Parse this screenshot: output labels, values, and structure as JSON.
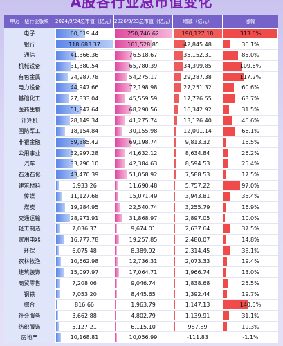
{
  "header": {
    "title": "A股各行业总市值变化"
  },
  "table": {
    "columns": [
      "申万一级行业板块",
      "2024/9/24总市值（亿元）",
      "2026/9/23总市值（亿元）",
      "增减（亿元）",
      "涨幅"
    ],
    "rows": [
      [
        "电子",
        "60,619.44",
        "250,746.62",
        "190,127.18",
        "313.6%"
      ],
      [
        "银行",
        "118,683.37",
        "161,528.85",
        "42,845.48",
        "36.1%"
      ],
      [
        "通信",
        "41,366.36",
        "76,518.67",
        "35,152.31",
        "85.0%"
      ],
      [
        "机械设备",
        "31,380.54",
        "65,780.39",
        "34,399.85",
        "109.6%"
      ],
      [
        "有色金属",
        "24,987.78",
        "54,275.17",
        "29,287.38",
        "117.2%"
      ],
      [
        "电力设备",
        "44,947.66",
        "72,198.98",
        "27,251.32",
        "60.6%"
      ],
      [
        "基础化工",
        "27,833.04",
        "45,559.59",
        "17,726.55",
        "63.7%"
      ],
      [
        "医药生物",
        "51,947.64",
        "68,290.56",
        "16,342.92",
        "31.5%"
      ],
      [
        "计算机",
        "28,149.34",
        "41,275.74",
        "13,126.40",
        "46.6%"
      ],
      [
        "国防军工",
        "18,154.84",
        "30,155.98",
        "12,001.14",
        "66.1%"
      ],
      [
        "非银金融",
        "59,385.42",
        "69,198.74",
        "9,813.32",
        "16.5%"
      ],
      [
        "公用事业",
        "32,997.28",
        "41,632.12",
        "8,634.84",
        "26.2%"
      ],
      [
        "汽车",
        "33,790.10",
        "42,384.63",
        "8,594.53",
        "25.4%"
      ],
      [
        "石油石化",
        "43,470.39",
        "51,058.92",
        "7,588.53",
        "17.5%"
      ],
      [
        "建筑材料",
        "5,933.26",
        "11,690.48",
        "5,757.22",
        "97.0%"
      ],
      [
        "传媒",
        "11,127.68",
        "15,071.49",
        "3,943.81",
        "35.4%"
      ],
      [
        "煤炭",
        "19,284.95",
        "22,540.74",
        "3,255.79",
        "16.9%"
      ],
      [
        "交通运输",
        "28,971.91",
        "31,868.97",
        "2,897.05",
        "10.0%"
      ],
      [
        "轻工制造",
        "7,036.37",
        "9,674.01",
        "2,637.64",
        "37.5%"
      ],
      [
        "家用电器",
        "16,777.78",
        "19,257.85",
        "2,480.07",
        "14.8%"
      ],
      [
        "环保",
        "6,075.48",
        "8,389.92",
        "2,314.45",
        "38.1%"
      ],
      [
        "农林牧渔",
        "10,662.98",
        "12,736.31",
        "2,073.33",
        "19.4%"
      ],
      [
        "建筑装饰",
        "15,097.97",
        "17,064.71",
        "1,966.74",
        "13.0%"
      ],
      [
        "商贸零售",
        "7,208.06",
        "9,046.74",
        "1,838.68",
        "25.5%"
      ],
      [
        "钢铁",
        "7,053.20",
        "8,445.65",
        "1,392.44",
        "19.7%"
      ],
      [
        "综合",
        "816.66",
        "1,963.79",
        "1,147.13",
        "140.5%"
      ],
      [
        "社会服务",
        "3,662.88",
        "4,802.79",
        "1,139.91",
        "31.1%"
      ],
      [
        "纺织服饰",
        "5,127.21",
        "6,115.10",
        "987.89",
        "19.3%"
      ],
      [
        "房地产",
        "10,168.81",
        "10,056.99",
        "-111.83",
        "-1.1%"
      ]
    ]
  }
}
